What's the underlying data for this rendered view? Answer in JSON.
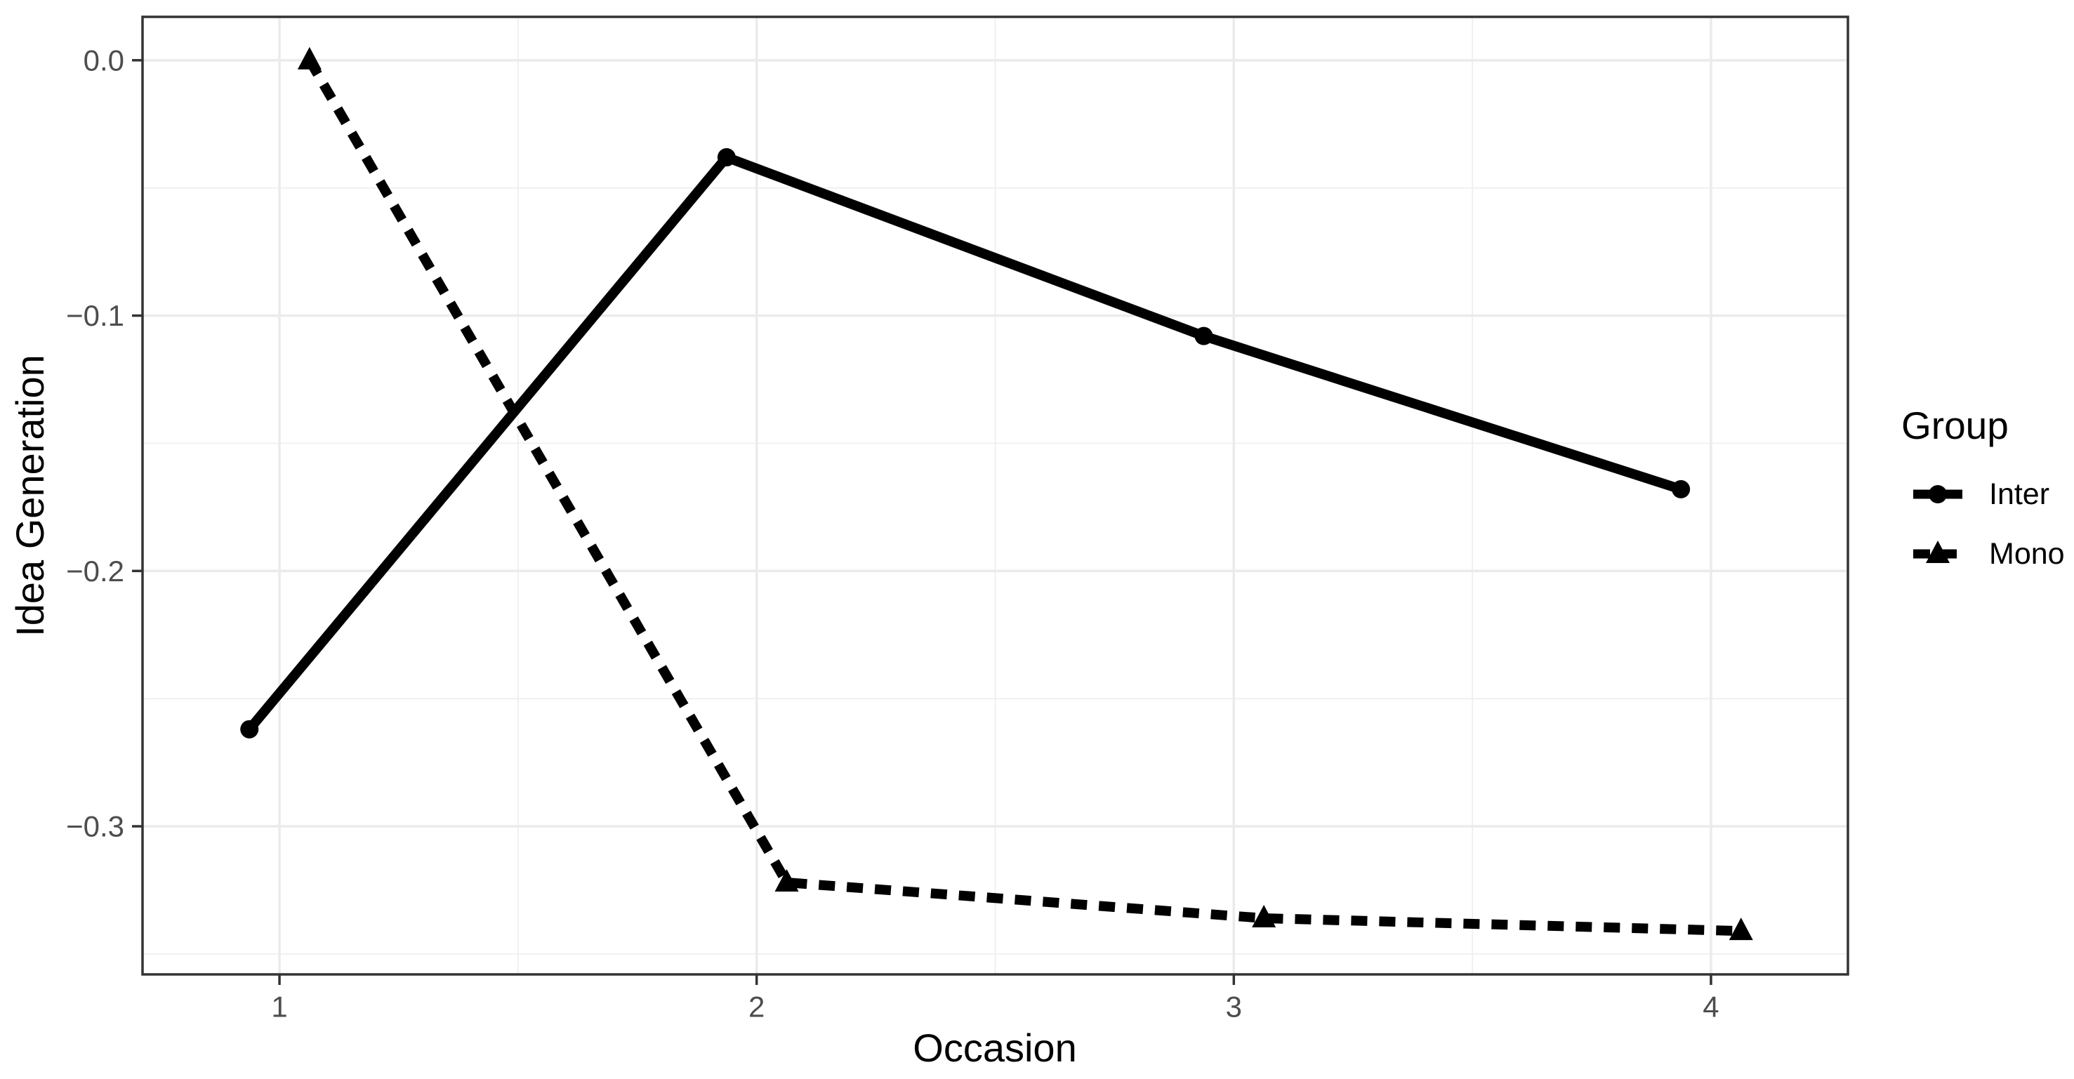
{
  "figure": {
    "background": "#ffffff",
    "panel_border_color": "#333333",
    "tick_color": "#333333",
    "grid_major_color": "#ebebeb",
    "grid_minor_color": "#f0f0f0",
    "tick_label_color": "#4d4d4d",
    "series_color": "#000000"
  },
  "chart_data": {
    "type": "line",
    "title": "",
    "xlabel": "Occasion",
    "ylabel": "Idea Generation",
    "x": [
      1,
      2,
      3,
      4
    ],
    "x_tick_labels": [
      "1",
      "2",
      "3",
      "4"
    ],
    "y_tick_values": [
      0.0,
      -0.1,
      -0.2,
      -0.3
    ],
    "y_tick_labels": [
      "0.0",
      "−0.1",
      "−0.2",
      "−0.3"
    ],
    "x_minor_values": [
      1.5,
      2.5,
      3.5
    ],
    "y_minor_values": [
      -0.05,
      -0.15,
      -0.25,
      -0.35
    ],
    "xlim": [
      0.713,
      4.287
    ],
    "ylim": [
      -0.358,
      0.017
    ],
    "grid": true,
    "dodge": 0.063,
    "series": [
      {
        "name": "Inter",
        "marker": "circle",
        "linetype": "solid",
        "color": "#000000",
        "values": [
          -0.262,
          -0.038,
          -0.108,
          -0.168
        ]
      },
      {
        "name": "Mono",
        "marker": "triangle",
        "linetype": "dashed",
        "color": "#000000",
        "values": [
          0.0,
          -0.322,
          -0.336,
          -0.341
        ]
      }
    ],
    "legend": {
      "title": "Group",
      "position": "right",
      "entries": [
        "Inter",
        "Mono"
      ]
    }
  }
}
